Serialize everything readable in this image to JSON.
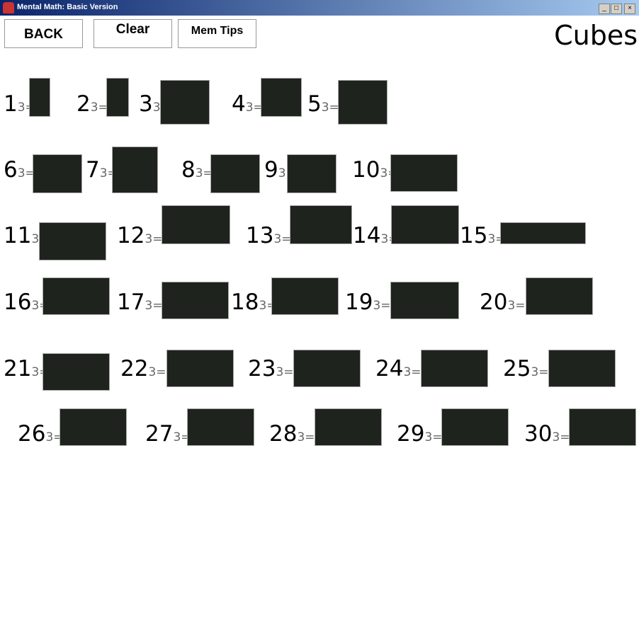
{
  "window": {
    "title": "Mental Math: Basic Version",
    "minimize": "_",
    "maximize": "□",
    "close": "×"
  },
  "toolbar": {
    "back_label": "BACK",
    "clear_label": "Clear",
    "memtips_label": "Mem Tips"
  },
  "heading": "Cubes",
  "exponent_label": "3=",
  "answer_box_color": "#1e231d",
  "problems": [
    "1",
    "2",
    "3",
    "4",
    "5",
    "6",
    "7",
    "8",
    "9",
    "10",
    "11",
    "12",
    "13",
    "14",
    "15",
    "16",
    "17",
    "18",
    "19",
    "20",
    "21",
    "22",
    "23",
    "24",
    "25",
    "26",
    "27",
    "28",
    "29",
    "30"
  ]
}
